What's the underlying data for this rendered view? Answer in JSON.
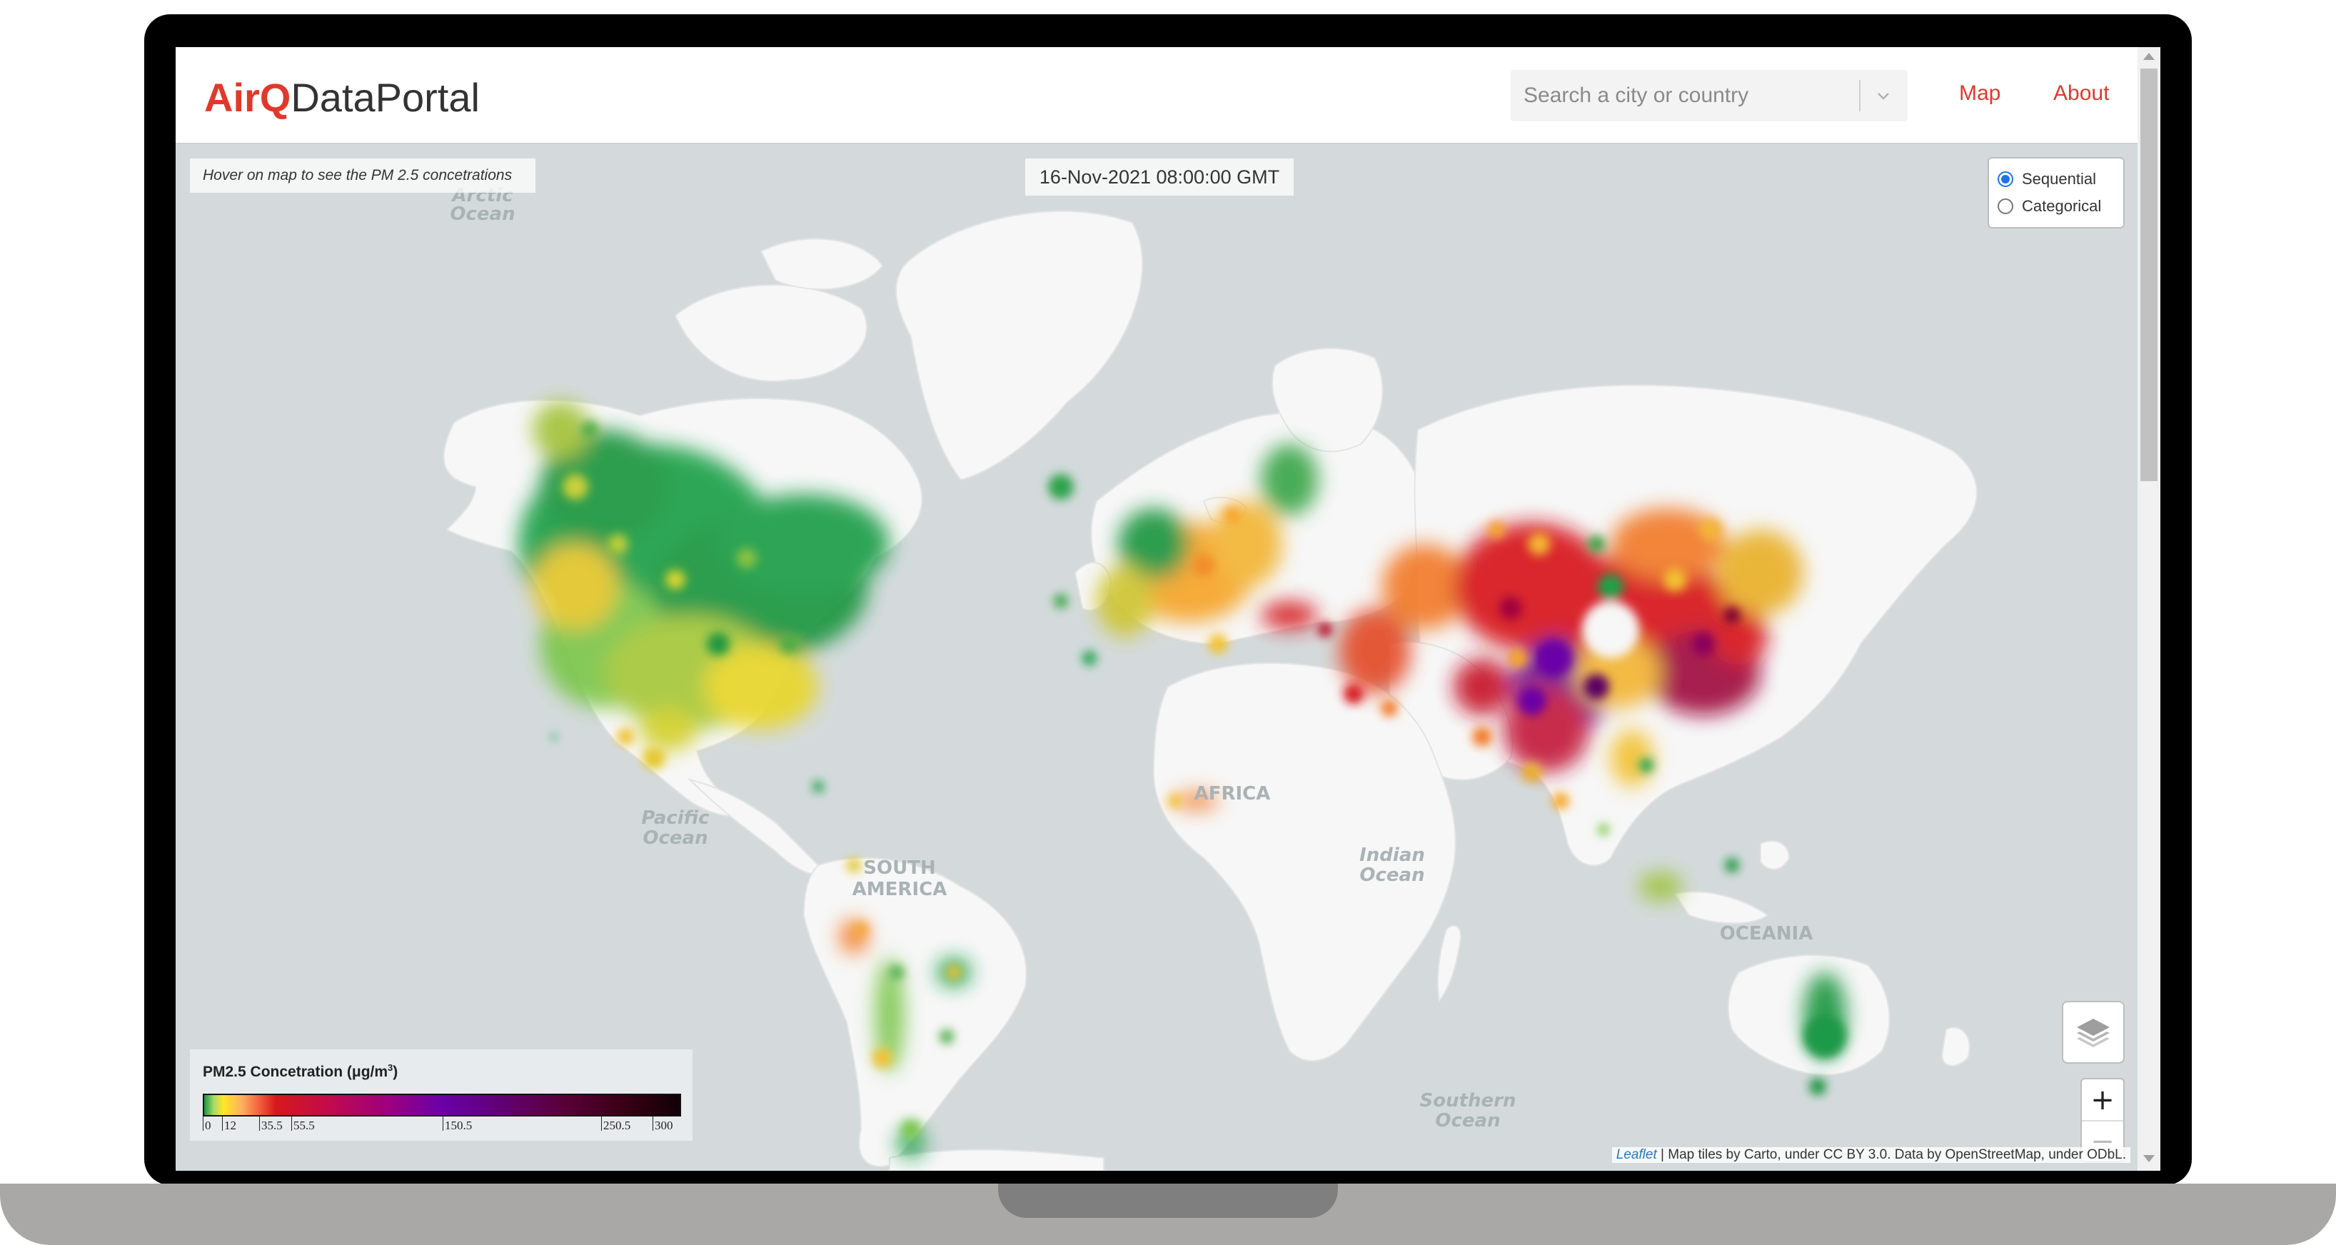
{
  "header": {
    "logo_brand": "AirQ",
    "logo_rest": "DataPortal",
    "search_placeholder": "Search a city or country",
    "nav": [
      {
        "label": "Map"
      },
      {
        "label": "About"
      }
    ]
  },
  "map": {
    "hover_hint": "Hover on map to see the PM 2.5 concetrations",
    "timestamp": "16-Nov-2021 08:00:00 GMT",
    "mode_options": [
      {
        "label": "Sequential",
        "selected": true
      },
      {
        "label": "Categorical",
        "selected": false
      }
    ],
    "place_labels": [
      {
        "text": "Arctic"
      },
      {
        "text": "Ocean"
      },
      {
        "text": "Pacific"
      },
      {
        "text": "Ocean"
      },
      {
        "text": "SOUTH"
      },
      {
        "text": "AMERICA"
      },
      {
        "text": "AFRICA"
      },
      {
        "text": "Indian"
      },
      {
        "text": "Ocean"
      },
      {
        "text": "OCEANIA"
      },
      {
        "text": "Southern"
      },
      {
        "text": "Ocean"
      }
    ],
    "zoom_in_label": "+",
    "zoom_out_label": "−",
    "legend": {
      "title": "PM2.5 Concetration (μg/m",
      "title_sup": "3",
      "title_end": ")",
      "ticks": [
        "0",
        "12",
        "35.5",
        "55.5",
        "150.5",
        "250.5",
        "300"
      ]
    },
    "attribution": {
      "leaflet": "Leaflet",
      "text": " | Map tiles by Carto, under CC BY 3.0. Data by OpenStreetMap, under ODbL."
    },
    "colors": {
      "land": "#f7f7f7",
      "water": "#d4dadc",
      "good": "#1a9641",
      "moderate": "#fee825",
      "unhealthy_sensitive": "#fdae61",
      "unhealthy": "#d7191c",
      "very_unhealthy": "#6a00a8"
    }
  }
}
